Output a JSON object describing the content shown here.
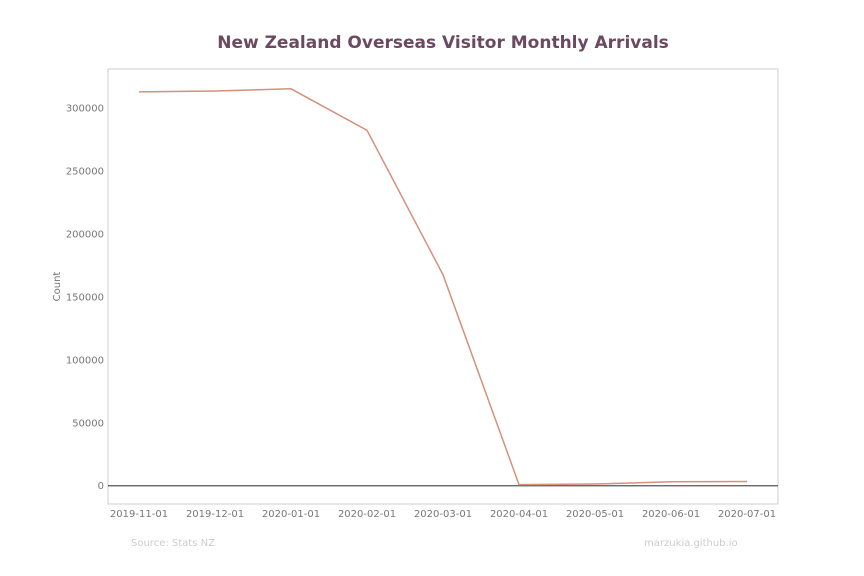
{
  "chart_data": {
    "type": "line",
    "title": "New Zealand Overseas Visitor Monthly Arrivals",
    "xlabel": "",
    "ylabel": "Count",
    "x": [
      "2019-11-01",
      "2019-12-01",
      "2020-01-01",
      "2020-02-01",
      "2020-03-01",
      "2020-04-01",
      "2020-05-01",
      "2020-06-01",
      "2020-07-01"
    ],
    "series": [
      {
        "values": [
          312800,
          313500,
          315300,
          282300,
          167600,
          900,
          1400,
          3100,
          3400
        ]
      }
    ],
    "ylim": [
      -14500,
      331000
    ],
    "yticks": [
      "0",
      "50000",
      "100000",
      "150000",
      "200000",
      "250000",
      "300000"
    ],
    "ytick_values": [
      0,
      50000,
      100000,
      150000,
      200000,
      250000,
      300000
    ],
    "baseline": 0,
    "grid": false,
    "legend": "none",
    "colors": {
      "title": "#6b4a61",
      "line": "#d4917c",
      "axis_text": "#777777",
      "frame": "#cccccc",
      "baseline": "#555555",
      "footer": "#cccccc"
    }
  },
  "footer": {
    "source": "Source: Stats NZ",
    "credit": "marzukia.github.io"
  }
}
